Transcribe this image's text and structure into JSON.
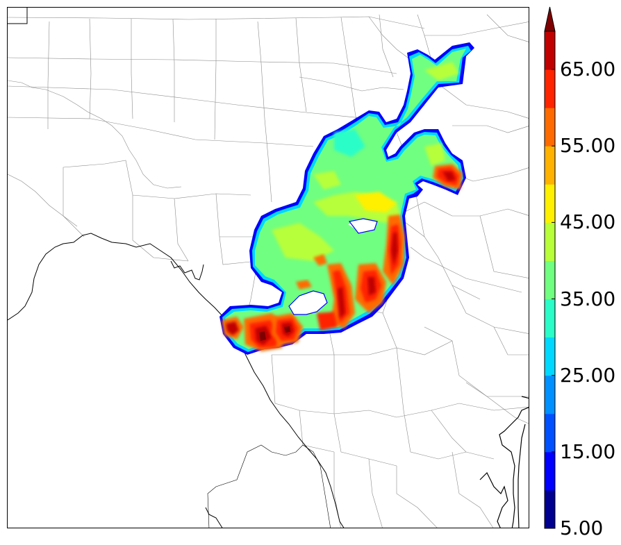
{
  "colorbar": {
    "levels": [
      5,
      10,
      15,
      20,
      25,
      30,
      35,
      40,
      45,
      50,
      55,
      60,
      65,
      70
    ],
    "colors": [
      "#00008f",
      "#0000ff",
      "#0050ff",
      "#0090ff",
      "#00d8ff",
      "#2afdc8",
      "#70ff80",
      "#b8ff3a",
      "#fff000",
      "#ffb200",
      "#ff6a00",
      "#ff2400",
      "#c00000",
      "#7f0000"
    ],
    "tick_labels": [
      "5.00",
      "15.00",
      "25.00",
      "35.00",
      "45.00",
      "55.00",
      "65.00"
    ],
    "extend": "max"
  },
  "map": {
    "background": "#ffffff",
    "county_line_color": "#808080",
    "border_line_color": "#000000"
  }
}
